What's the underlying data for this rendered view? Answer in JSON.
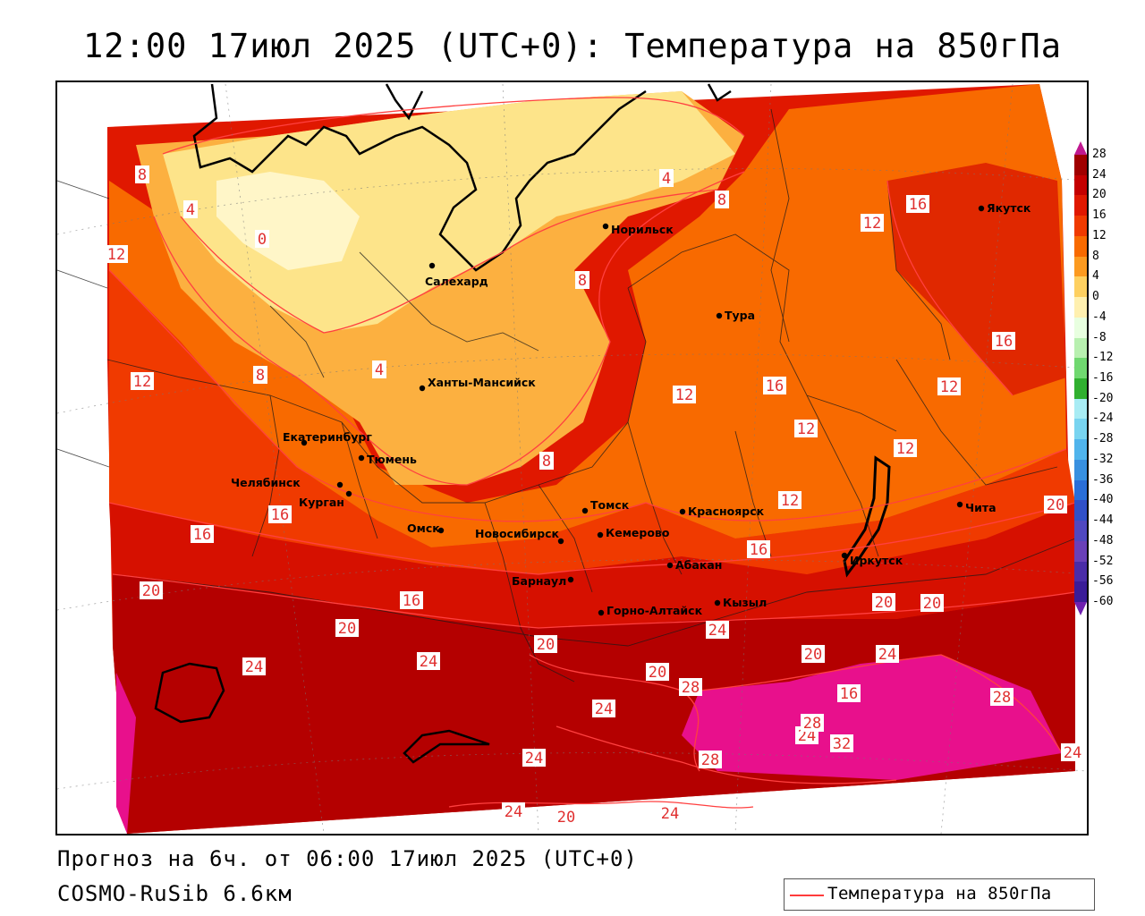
{
  "title": "12:00 17июл 2025 (UTC+0): Температура на 850гПа",
  "footer": {
    "forecast": "Прогноз на 6ч. от 06:00 17июл 2025 (UTC+0)",
    "model": "COSMO-RuSib 6.6км"
  },
  "legend": {
    "label": "Температура на 850гПа",
    "line_color": "#ff3b3b"
  },
  "colorbar": {
    "levels": [
      "28",
      "24",
      "20",
      "16",
      "12",
      "8",
      "4",
      "0",
      "-4",
      "-8",
      "-12",
      "-16",
      "-20",
      "-24",
      "-28",
      "-32",
      "-36",
      "-40",
      "-44",
      "-48",
      "-52",
      "-56",
      "-60"
    ],
    "colors": [
      "#a00000",
      "#c40000",
      "#e01800",
      "#f03a00",
      "#f86a00",
      "#fc9a20",
      "#fed060",
      "#fff0b0",
      "#e8ffe0",
      "#b8f0b0",
      "#70d870",
      "#30b030",
      "#a8ecf4",
      "#78d4f0",
      "#50b4ec",
      "#3890e0",
      "#2a6ed8",
      "#3050c8",
      "#5048c0",
      "#6a40b8",
      "#4a2ca8",
      "#3a1c98",
      "#2a0a88"
    ]
  },
  "cities": [
    {
      "name": "Салехард",
      "icon": "city-dot-icon"
    },
    {
      "name": "Норильск",
      "icon": "city-dot-icon"
    },
    {
      "name": "Якутск",
      "icon": "city-dot-icon"
    },
    {
      "name": "Тура",
      "icon": "city-dot-icon"
    },
    {
      "name": "Ханты-Мансийск",
      "icon": "city-dot-icon"
    },
    {
      "name": "Екатеринбург",
      "icon": "city-dot-icon"
    },
    {
      "name": "Тюмень",
      "icon": "city-dot-icon"
    },
    {
      "name": "Челябинск",
      "icon": "city-dot-icon"
    },
    {
      "name": "Курган",
      "icon": "city-dot-icon"
    },
    {
      "name": "Омск",
      "icon": "city-dot-icon"
    },
    {
      "name": "Новосибирск",
      "icon": "city-dot-icon"
    },
    {
      "name": "Томск",
      "icon": "city-dot-icon"
    },
    {
      "name": "Кемерово",
      "icon": "city-dot-icon"
    },
    {
      "name": "Красноярск",
      "icon": "city-dot-icon"
    },
    {
      "name": "Абакан",
      "icon": "city-dot-icon"
    },
    {
      "name": "Барнаул",
      "icon": "city-dot-icon"
    },
    {
      "name": "Горно-Алтайск",
      "icon": "city-dot-icon"
    },
    {
      "name": "Кызыл",
      "icon": "city-dot-icon"
    },
    {
      "name": "Иркутск",
      "icon": "city-dot-icon"
    },
    {
      "name": "Чита",
      "icon": "city-dot-icon"
    }
  ],
  "contour_labels": [
    "8",
    "4",
    "0",
    "12",
    "4",
    "8",
    "4",
    "8",
    "16",
    "12",
    "16",
    "12",
    "8",
    "12",
    "16",
    "12",
    "12",
    "12",
    "12",
    "8",
    "20",
    "16",
    "16",
    "16",
    "20",
    "16",
    "24",
    "20",
    "20",
    "24",
    "24",
    "20",
    "24",
    "28",
    "16",
    "24",
    "28",
    "28",
    "32",
    "28",
    "24",
    "24",
    "20",
    "24",
    "20",
    "24",
    "20",
    "20",
    "24"
  ]
}
